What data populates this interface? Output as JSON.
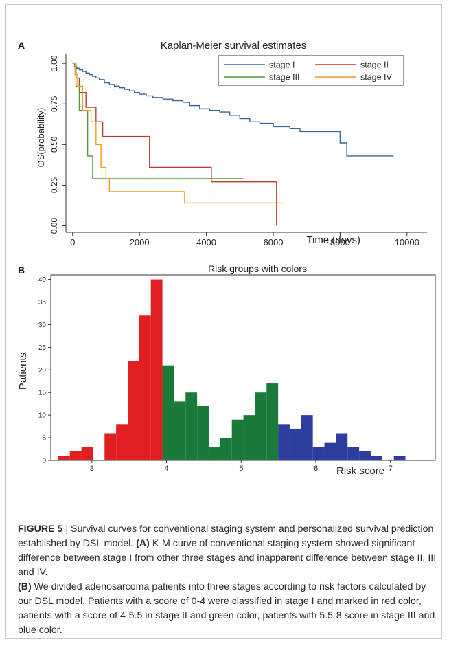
{
  "panel_a": {
    "letter": "A",
    "title": "Kaplan-Meier survival estimates",
    "xlabel": "Time (days)",
    "ylabel": "OS(probability)"
  },
  "panel_b": {
    "letter": "B",
    "title": "Risk groups with colors",
    "xlabel": "Risk score",
    "ylabel": "Patients"
  },
  "caption": {
    "figure_label": "FIGURE 5",
    "separator": "|",
    "intro": "Survival curves for conventional staging system and personalized survival prediction established by DSL model.",
    "part_a_label": "(A)",
    "part_a_text": "K-M curve of conventional staging system showed significant difference between stage I from other three stages and inapparent difference between stage II, III and IV.",
    "part_b_label": "(B)",
    "part_b_text": "We divided adenosarcoma patients into three stages according to risk factors calculated by our DSL model. Patients with a score of 0-4 were classified in stage I and marked in red color, patients with a score of 4-5.5 in stage II and green color, patients with 5.5-8 score in stage III and blue color."
  },
  "chart_data": [
    {
      "type": "line",
      "title": "Kaplan-Meier survival estimates",
      "xlabel": "Time (days)",
      "ylabel": "OS(probability)",
      "xlim": [
        -200,
        10600
      ],
      "ylim": [
        -0.04,
        1.06
      ],
      "xticks": [
        0,
        2000,
        4000,
        6000,
        8000,
        10000
      ],
      "yticks": [
        0.0,
        0.25,
        0.5,
        0.75,
        1.0
      ],
      "ytick_labels": [
        "0.00",
        "0.25",
        "0.50",
        "0.75",
        "1.00"
      ],
      "legend_position": "top-right",
      "grid": false,
      "series": [
        {
          "name": "stage I",
          "color": "#3465a4",
          "step": true,
          "x": [
            0,
            60,
            120,
            200,
            300,
            400,
            500,
            600,
            700,
            800,
            950,
            1100,
            1250,
            1400,
            1550,
            1700,
            1850,
            2000,
            2200,
            2400,
            2700,
            3000,
            3300,
            3500,
            3800,
            4100,
            4400,
            4700,
            5000,
            5300,
            5600,
            6000,
            6500,
            6800,
            7200,
            8000,
            8200,
            9600
          ],
          "y": [
            1.0,
            0.98,
            0.97,
            0.96,
            0.95,
            0.94,
            0.93,
            0.92,
            0.91,
            0.9,
            0.88,
            0.87,
            0.86,
            0.85,
            0.84,
            0.83,
            0.82,
            0.81,
            0.8,
            0.79,
            0.78,
            0.77,
            0.76,
            0.74,
            0.72,
            0.71,
            0.7,
            0.68,
            0.66,
            0.64,
            0.63,
            0.61,
            0.6,
            0.58,
            0.58,
            0.51,
            0.43,
            0.43
          ]
        },
        {
          "name": "stage II",
          "color": "#c0392b",
          "step": true,
          "x": [
            0,
            100,
            200,
            400,
            700,
            900,
            2300,
            4150,
            6100,
            6100
          ],
          "y": [
            1.0,
            0.91,
            0.82,
            0.73,
            0.64,
            0.55,
            0.36,
            0.27,
            0.27,
            0.0
          ]
        },
        {
          "name": "stage III",
          "color": "#4e9a3a",
          "step": true,
          "x": [
            0,
            100,
            200,
            450,
            600,
            5100
          ],
          "y": [
            1.0,
            0.86,
            0.71,
            0.43,
            0.29,
            0.29
          ]
        },
        {
          "name": "stage IV",
          "color": "#f29b1d",
          "step": true,
          "x": [
            0,
            70,
            150,
            300,
            550,
            700,
            850,
            1000,
            1100,
            3350,
            6300
          ],
          "y": [
            1.0,
            0.93,
            0.86,
            0.71,
            0.64,
            0.5,
            0.36,
            0.29,
            0.21,
            0.14,
            0.14
          ]
        }
      ]
    },
    {
      "type": "bar",
      "title": "Risk groups with colors",
      "xlabel": "Risk score",
      "ylabel": "Patients",
      "xlim": [
        2.45,
        7.6
      ],
      "ylim": [
        0,
        41
      ],
      "xticks": [
        3,
        4,
        5,
        6,
        7
      ],
      "yticks": [
        0,
        5,
        10,
        15,
        20,
        25,
        30,
        35,
        40
      ],
      "bin_width": 0.155,
      "groups": [
        {
          "color": "#e02020",
          "bins": [
            {
              "x": 2.55,
              "value": 1
            },
            {
              "x": 2.705,
              "value": 2
            },
            {
              "x": 2.86,
              "value": 3
            },
            {
              "x": 3.17,
              "value": 6
            },
            {
              "x": 3.325,
              "value": 8
            },
            {
              "x": 3.48,
              "value": 22
            },
            {
              "x": 3.635,
              "value": 32
            },
            {
              "x": 3.79,
              "value": 40
            }
          ]
        },
        {
          "color": "#1a7a3a",
          "bins": [
            {
              "x": 3.945,
              "value": 21
            },
            {
              "x": 4.1,
              "value": 13
            },
            {
              "x": 4.255,
              "value": 15
            },
            {
              "x": 4.41,
              "value": 12
            },
            {
              "x": 4.565,
              "value": 3
            },
            {
              "x": 4.72,
              "value": 5
            },
            {
              "x": 4.875,
              "value": 9
            },
            {
              "x": 5.03,
              "value": 10
            },
            {
              "x": 5.185,
              "value": 15
            },
            {
              "x": 5.34,
              "value": 17
            }
          ]
        },
        {
          "color": "#2d3e9e",
          "bins": [
            {
              "x": 5.495,
              "value": 8
            },
            {
              "x": 5.65,
              "value": 7
            },
            {
              "x": 5.805,
              "value": 10
            },
            {
              "x": 5.96,
              "value": 3
            },
            {
              "x": 6.115,
              "value": 4
            },
            {
              "x": 6.27,
              "value": 6
            },
            {
              "x": 6.425,
              "value": 3
            },
            {
              "x": 6.58,
              "value": 2
            },
            {
              "x": 6.735,
              "value": 1
            },
            {
              "x": 7.045,
              "value": 1
            }
          ]
        }
      ]
    }
  ]
}
